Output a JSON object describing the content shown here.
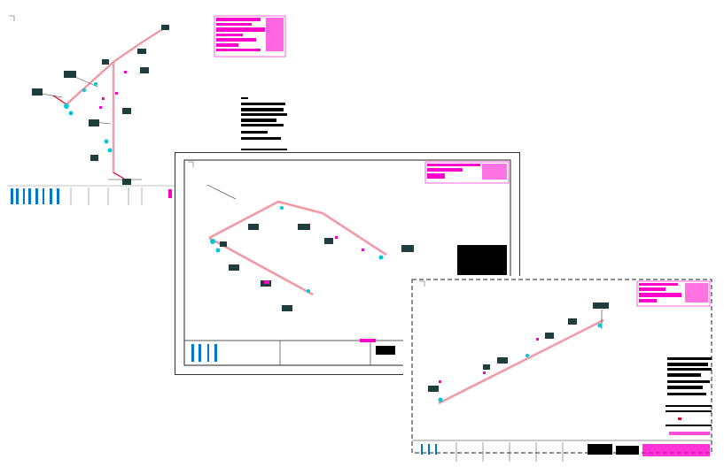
{
  "colors": {
    "pipe_red": "#e0001b",
    "pipe_pink": "#f2b6c0",
    "tag_dark": "#1f3d3a",
    "magenta": "#ff00cc",
    "cyan": "#00c8d8",
    "blue": "#0077cc",
    "black": "#000000",
    "frame": "#222222"
  },
  "sheets": [
    {
      "name": "isometric-drawing-sheet-1",
      "icon": "drawing-sheet-icon"
    },
    {
      "name": "isometric-drawing-sheet-2",
      "icon": "drawing-sheet-icon"
    },
    {
      "name": "isometric-drawing-sheet-3",
      "icon": "drawing-sheet-icon"
    }
  ]
}
